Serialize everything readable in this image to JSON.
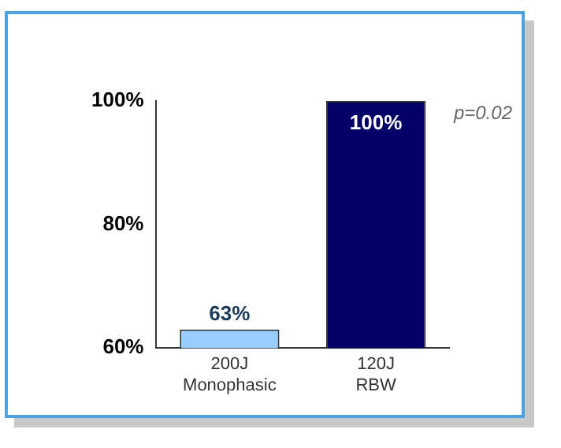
{
  "chart_data": {
    "type": "bar",
    "categories": [
      "200J\nMonophasic",
      "120J\nRBW"
    ],
    "values": [
      63,
      100
    ],
    "colors": [
      "#99ccff",
      "#000066"
    ],
    "value_labels": [
      "63%",
      "100%"
    ],
    "ylim": [
      60,
      100
    ],
    "yticks": [
      {
        "value": 60,
        "label": "60%"
      },
      {
        "value": 80,
        "label": "80%"
      },
      {
        "value": 100,
        "label": "100%"
      }
    ],
    "grid": false,
    "legend": false,
    "annotations": [
      "p=0.02"
    ]
  }
}
